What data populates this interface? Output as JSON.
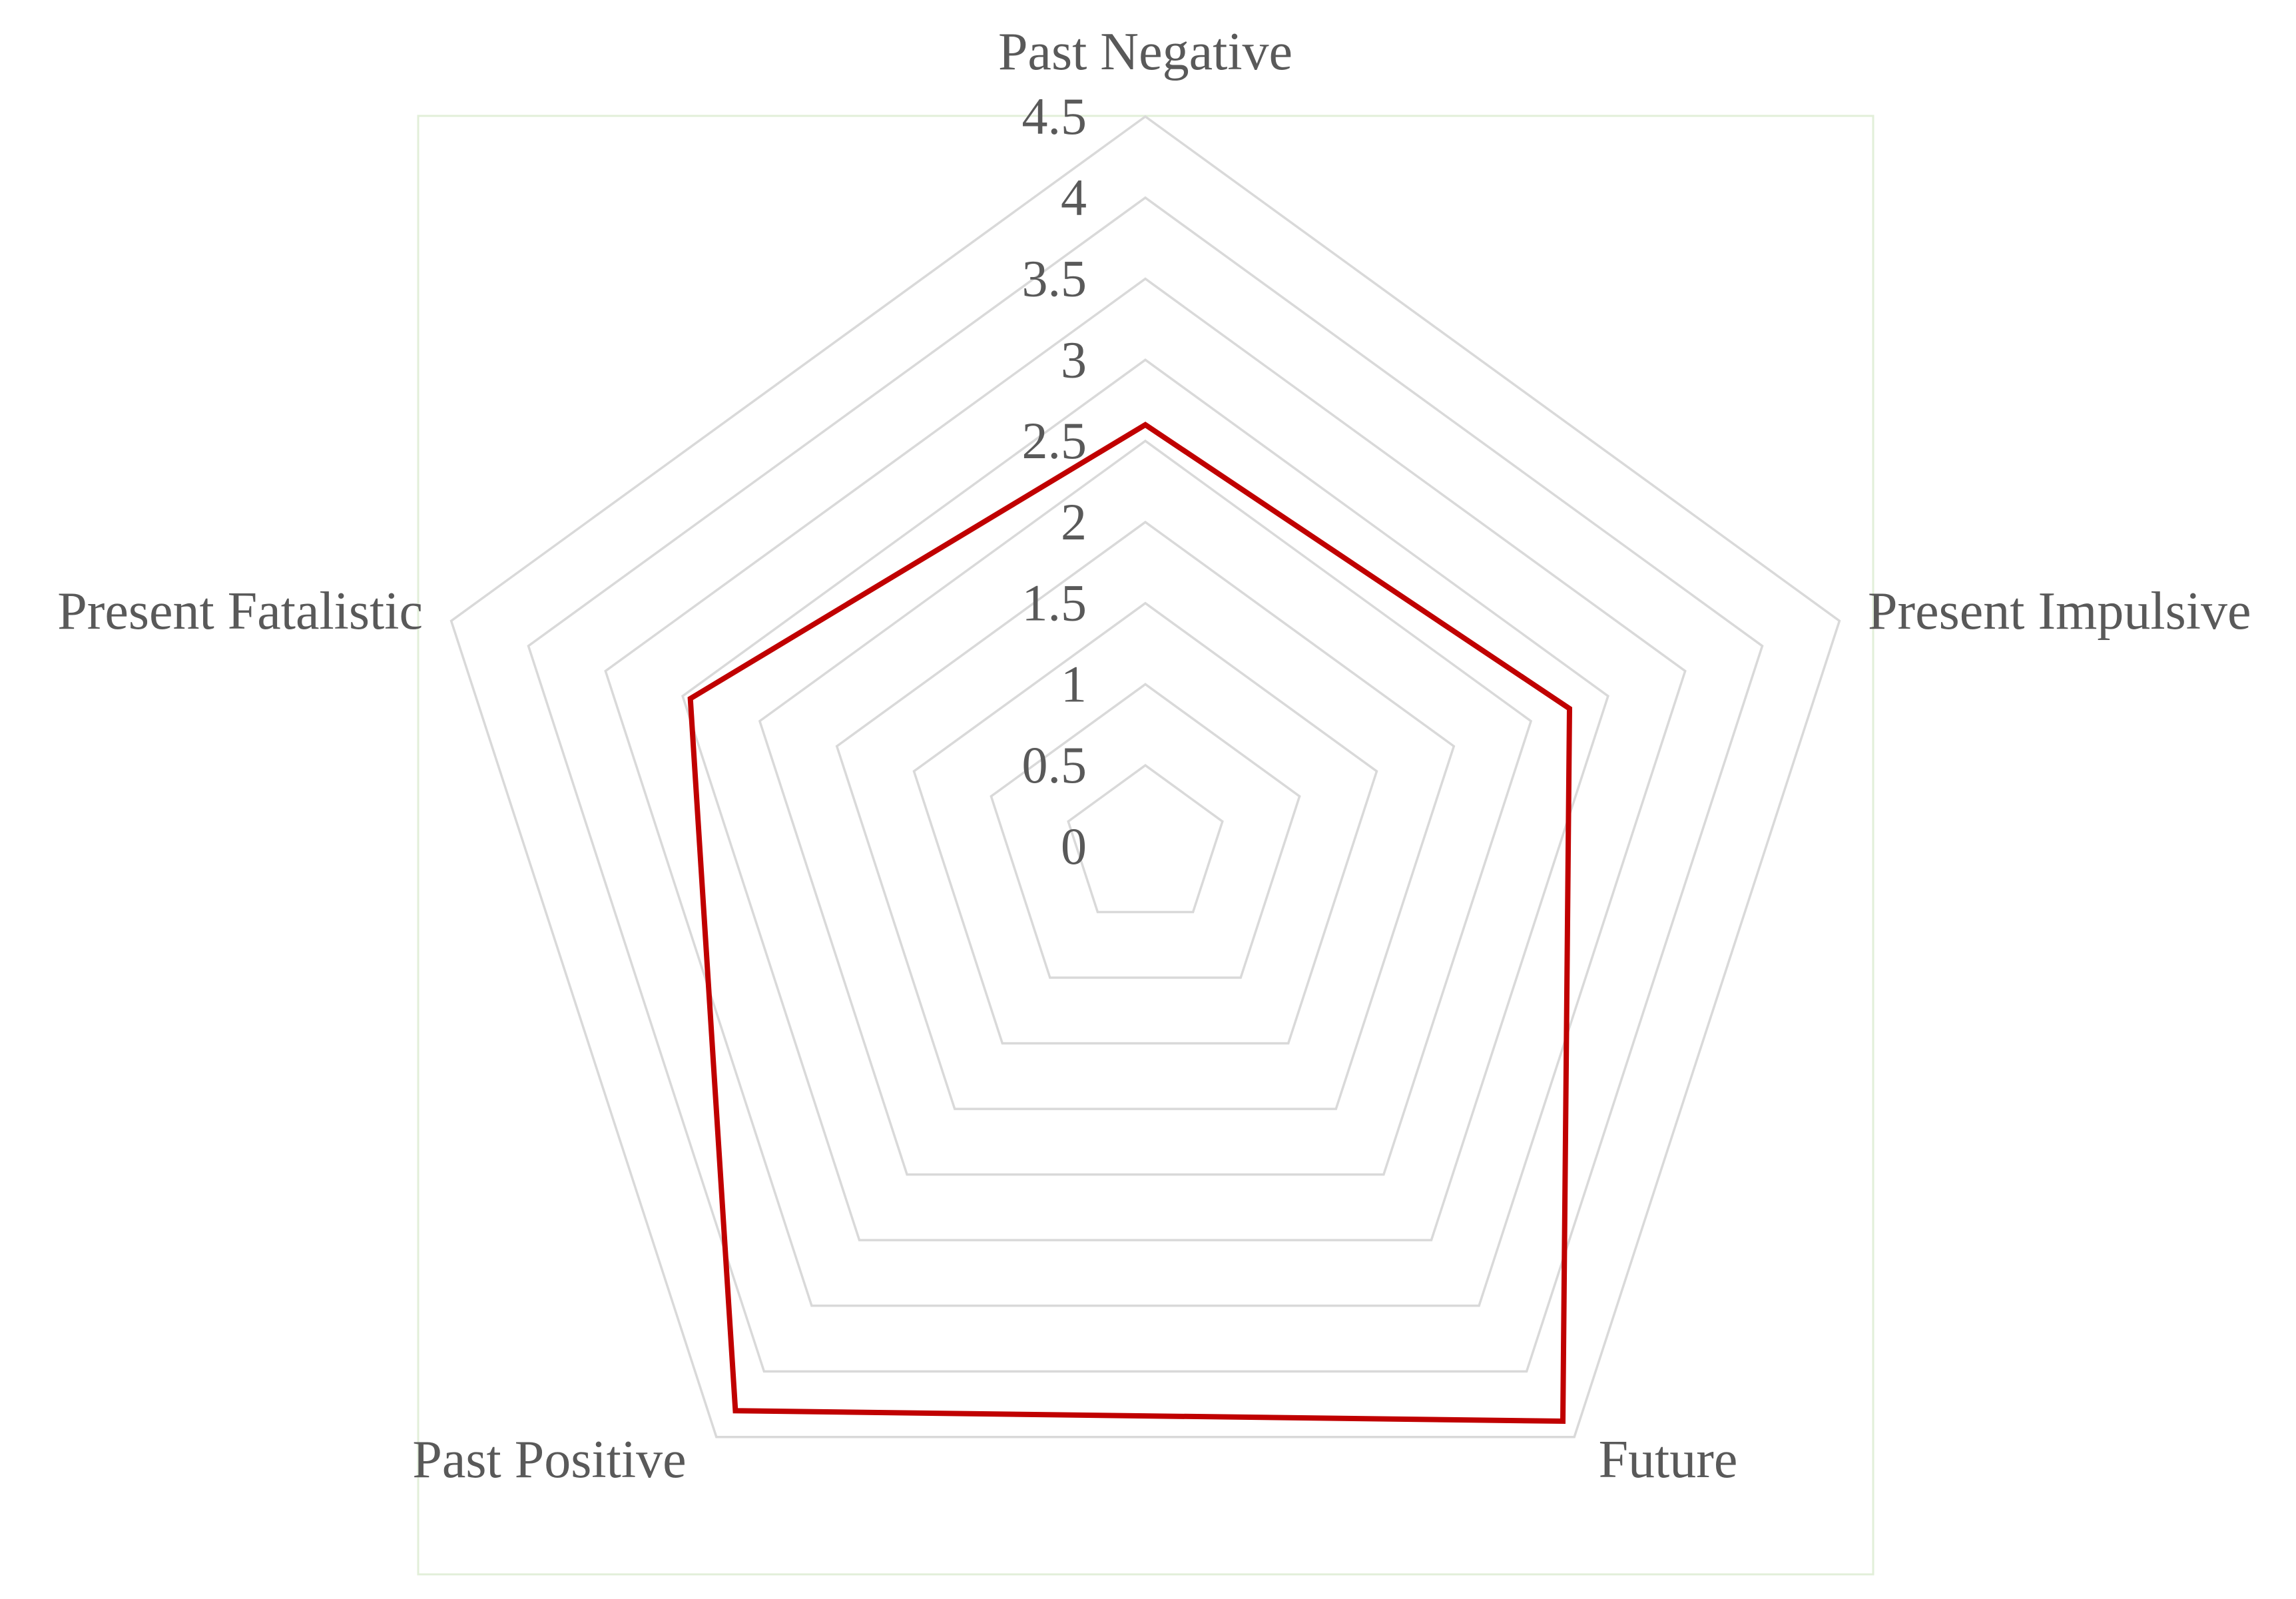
{
  "chart_data": {
    "type": "radar",
    "categories": [
      "Past Negative",
      "Present Impulsive",
      "Future",
      "Past Positive",
      "Present Fatalistic"
    ],
    "series": [
      {
        "color": "#c00000",
        "values": [
          2.6,
          2.75,
          4.38,
          4.3,
          2.95
        ]
      }
    ],
    "r_ticks": [
      "0",
      "0.5",
      "1",
      "1.5",
      "2",
      "2.5",
      "3",
      "3.5",
      "4",
      "4.5"
    ],
    "rlim": [
      0,
      4.5
    ],
    "grid": true,
    "grid_color": "#d9d9d9",
    "legend": "none"
  }
}
